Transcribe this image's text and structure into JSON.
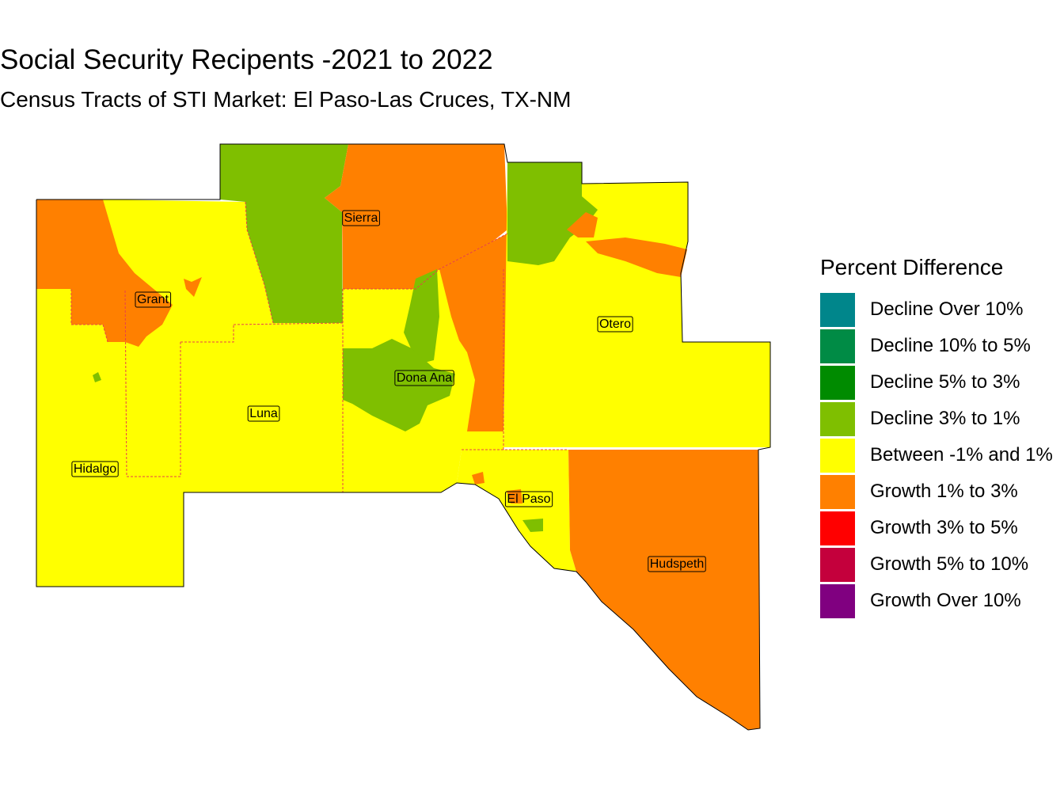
{
  "title": "Social Security Recipents -2021 to 2022",
  "subtitle": "Census Tracts of STI Market: El Paso-Las Cruces, TX-NM",
  "legend": {
    "title": "Percent Difference",
    "items": [
      {
        "label": "Decline Over 10%",
        "color": "#00868B"
      },
      {
        "label": "Decline 10% to 5%",
        "color": "#008B45"
      },
      {
        "label": "Decline 5% to 3%",
        "color": "#008B00"
      },
      {
        "label": "Decline 3% to 1%",
        "color": "#7FBF00"
      },
      {
        "label": "Between -1% and 1%",
        "color": "#FFFF00"
      },
      {
        "label": "Growth 1% to 3%",
        "color": "#FF8000"
      },
      {
        "label": "Growth 3% to 5%",
        "color": "#FF0000"
      },
      {
        "label": "Growth 5% to 10%",
        "color": "#C4003C"
      },
      {
        "label": "Growth Over 10%",
        "color": "#800080"
      }
    ]
  },
  "counties": [
    "Sierra",
    "Grant",
    "Otero",
    "Dona Ana",
    "Luna",
    "Hidalgo",
    "El Paso",
    "Hudspeth"
  ]
}
